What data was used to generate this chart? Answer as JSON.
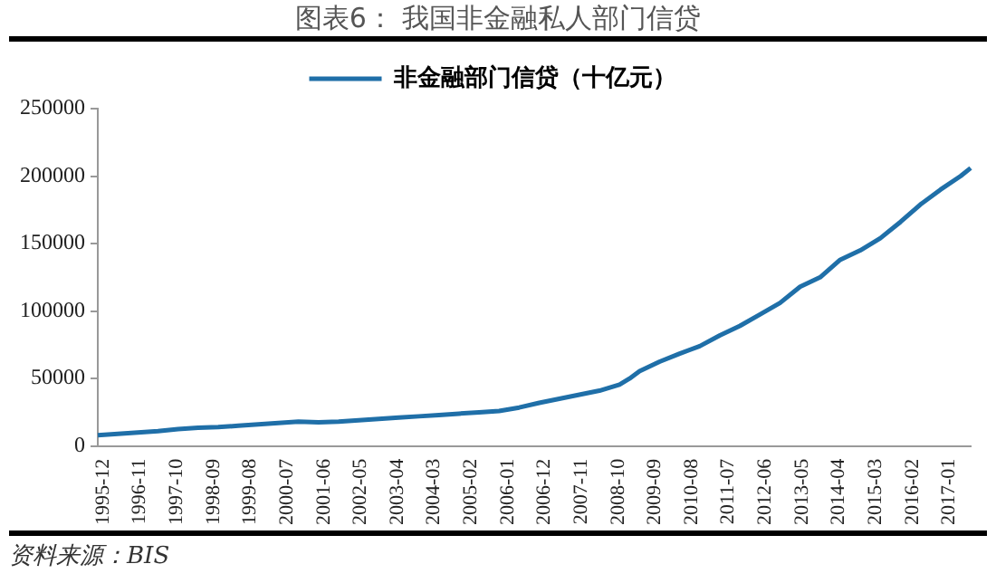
{
  "chart_data": {
    "type": "line",
    "title": "图表6：  我国非金融私人部门信贷",
    "annotations": [
      "资料来源：BIS"
    ],
    "x": [
      "1995-12",
      "1996-06",
      "1996-12",
      "1997-06",
      "1997-12",
      "1998-06",
      "1998-12",
      "1999-06",
      "1999-12",
      "2000-06",
      "2000-12",
      "2001-06",
      "2001-12",
      "2002-06",
      "2002-12",
      "2003-06",
      "2003-12",
      "2004-06",
      "2004-12",
      "2005-06",
      "2005-12",
      "2006-06",
      "2006-12",
      "2007-06",
      "2007-12",
      "2008-06",
      "2008-12",
      "2009-03",
      "2009-06",
      "2009-12",
      "2010-06",
      "2010-12",
      "2011-06",
      "2011-12",
      "2012-06",
      "2012-12",
      "2013-06",
      "2013-12",
      "2014-06",
      "2014-12",
      "2015-06",
      "2015-12",
      "2016-06",
      "2016-12",
      "2017-06",
      "2017-09"
    ],
    "series": [
      {
        "name": "非金融部门信贷（十亿元）",
        "color": "#1f6fa8",
        "values": [
          8000,
          9000,
          10000,
          11000,
          12500,
          13500,
          14000,
          15000,
          16000,
          17000,
          18000,
          17500,
          18000,
          19000,
          20000,
          21000,
          22000,
          23000,
          24000,
          25000,
          26000,
          28500,
          32000,
          35000,
          38000,
          41000,
          45500,
          50000,
          55500,
          62500,
          68500,
          74000,
          82000,
          89000,
          97500,
          106000,
          118000,
          125000,
          138000,
          145000,
          154000,
          166000,
          179000,
          190000,
          200000,
          206000
        ]
      }
    ],
    "xlim": [
      "1995-12",
      "2017-09"
    ],
    "xticks": [
      "1995-12",
      "1996-11",
      "1997-10",
      "1998-09",
      "1999-08",
      "2000-07",
      "2001-06",
      "2002-05",
      "2003-04",
      "2004-03",
      "2005-02",
      "2006-01",
      "2006-12",
      "2007-11",
      "2008-10",
      "2009-09",
      "2010-08",
      "2011-07",
      "2012-06",
      "2013-05",
      "2014-04",
      "2015-03",
      "2016-02",
      "2017-01"
    ],
    "ylim": [
      0,
      250000
    ],
    "yticks": [
      0,
      50000,
      100000,
      150000,
      200000,
      250000
    ],
    "grid": false,
    "legend": "top",
    "marker": "none",
    "line_style": "solid"
  }
}
